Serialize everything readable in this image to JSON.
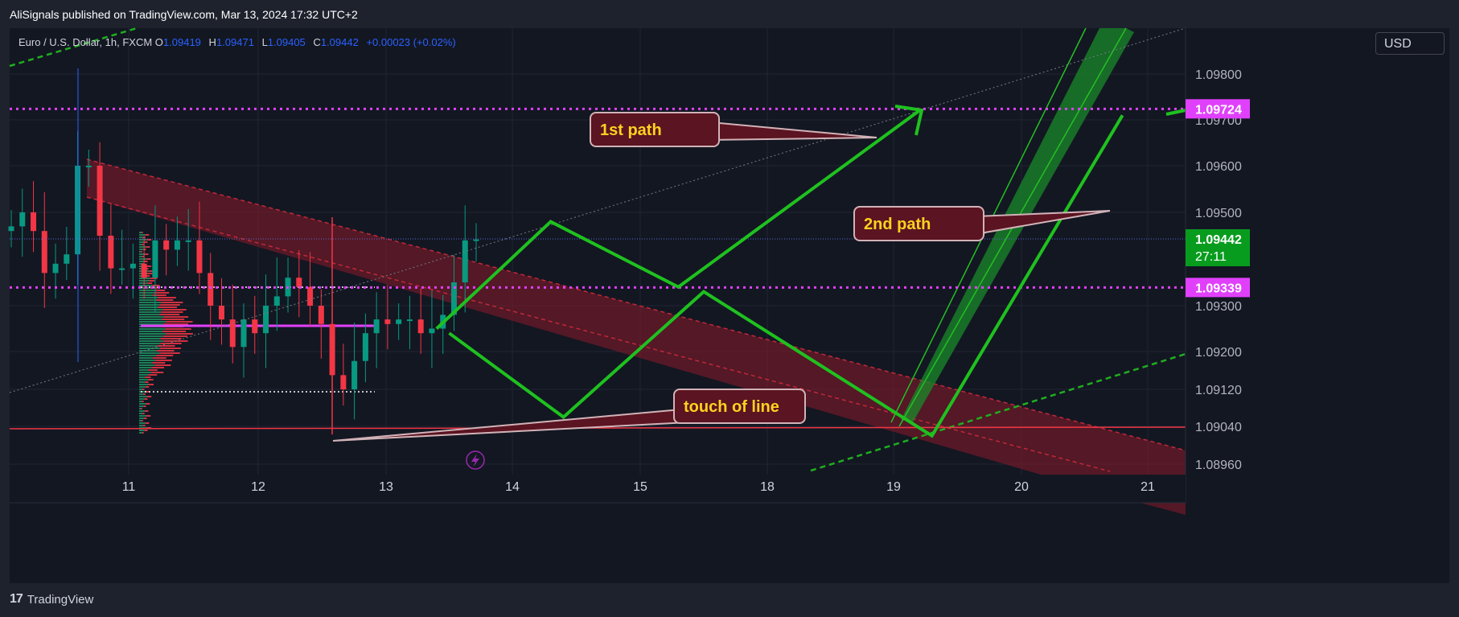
{
  "header": {
    "published": "AliSignals published on TradingView.com, Mar 13, 2024 17:32 UTC+2"
  },
  "symbol": {
    "name": "Euro / U.S. Dollar, 1h, FXCM",
    "open_label": "O",
    "open": "1.09419",
    "high_label": "H",
    "high": "1.09471",
    "low_label": "L",
    "low": "1.09405",
    "close_label": "C",
    "close": "1.09442",
    "change": "+0.00023 (+0.02%)"
  },
  "price_scale": {
    "currency": "USD",
    "ticks": [
      "1.09800",
      "1.09700",
      "1.09600",
      "1.09500",
      "1.09300",
      "1.09200",
      "1.09120",
      "1.09040",
      "1.08960"
    ],
    "current_price": "1.09442",
    "countdown": "27:11"
  },
  "time_axis": {
    "labels": [
      "11",
      "12",
      "13",
      "14",
      "15",
      "18",
      "19",
      "20",
      "21"
    ]
  },
  "annotations": {
    "path1": "1st path",
    "path2": "2nd path",
    "touch": "touch of line"
  },
  "levels": [
    {
      "label": "1.09724",
      "price": 1.09724,
      "color": "#e040fb"
    },
    {
      "label": "1.09339",
      "price": 1.09339,
      "color": "#e040fb"
    }
  ],
  "colors": {
    "up": "#089981",
    "down": "#f23645",
    "path": "#1fc11f",
    "level": "#e040fb",
    "channel": "#8b1a2a",
    "current_price_bg": "#089c1e"
  },
  "footer": {
    "brand": "TradingView"
  },
  "chart_data": {
    "type": "line",
    "title": "Euro / U.S. Dollar, 1h, FXCM",
    "x": [
      "11",
      "12",
      "13",
      "14",
      "15",
      "18",
      "19",
      "20",
      "21"
    ],
    "ylim": [
      1.0892,
      1.0985
    ],
    "yticks": [
      1.098,
      1.097,
      1.096,
      1.095,
      1.093,
      1.092,
      1.0912,
      1.0904,
      1.0896
    ],
    "horizontal_levels": [
      1.09724,
      1.09339,
      1.09442,
      1.0904
    ],
    "series": [
      {
        "name": "1st path",
        "x": [
          13.4,
          14.3,
          15.3,
          19.2
        ],
        "y": [
          1.0925,
          1.0948,
          1.0934,
          1.0972
        ]
      },
      {
        "name": "2nd path",
        "x": [
          13.5,
          14.4,
          15.5,
          19.3,
          20.8
        ],
        "y": [
          1.0924,
          1.0906,
          1.0933,
          1.0902,
          1.0971
        ]
      }
    ],
    "candles_close_approx": [
      1.0947,
      1.095,
      1.0946,
      1.0937,
      1.0939,
      1.0941,
      1.096,
      1.096,
      1.0945,
      1.0938,
      1.0938,
      1.0939,
      1.0936,
      1.0944,
      1.0942,
      1.0944,
      1.0944,
      1.0937,
      1.093,
      1.0927,
      1.0921,
      1.0927,
      1.0924,
      1.093,
      1.0932,
      1.0936,
      1.0934,
      1.093,
      1.0926,
      1.0915,
      1.0912,
      1.0918,
      1.0924,
      1.0927,
      1.0926,
      1.0927,
      1.0927,
      1.0924,
      1.0925,
      1.0928,
      1.0935,
      1.0944,
      1.09442
    ],
    "grid": true,
    "legend": "none"
  }
}
